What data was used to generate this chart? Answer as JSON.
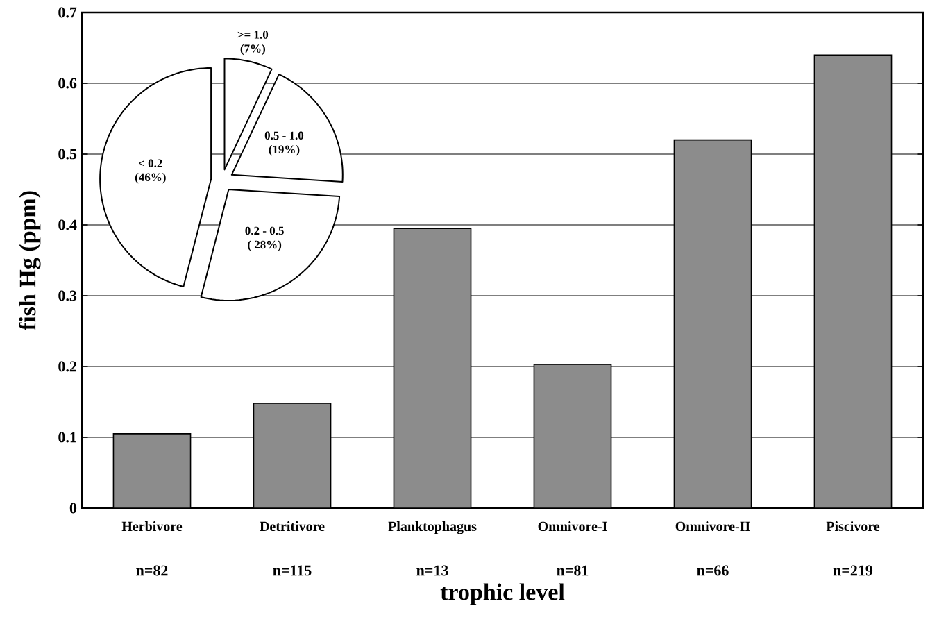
{
  "chart_data": [
    {
      "type": "bar",
      "xlabel": "trophic level",
      "ylabel": "fish Hg (ppm)",
      "categories": [
        "Herbivore",
        "Detritivore",
        "Planktophagus",
        "Omnivore-I",
        "Omnivore-II",
        "Piscivore"
      ],
      "values": [
        0.105,
        0.148,
        0.395,
        0.203,
        0.52,
        0.64
      ],
      "color": "#8c8c8c",
      "ylim": [
        0,
        0.7
      ],
      "yticks": [
        0,
        0.1,
        0.2,
        0.3,
        0.4,
        0.5,
        0.6,
        0.7
      ],
      "grid": "y",
      "annotations": [
        "n=82",
        "n=115",
        "n=13",
        "n=81",
        "n=66",
        "n=219"
      ]
    },
    {
      "type": "pie",
      "categories": [
        ">= 1.0",
        "0.5 - 1.0",
        "0.2 - 0.5",
        "< 0.2"
      ],
      "values": [
        7,
        19,
        28,
        46
      ],
      "value_labels": [
        "(7%)",
        "(19%)",
        "( 28%)",
        "(46%)"
      ],
      "colors": [
        "#ffffff",
        "#ffffff",
        "#ffffff",
        "#ffffff"
      ]
    }
  ]
}
